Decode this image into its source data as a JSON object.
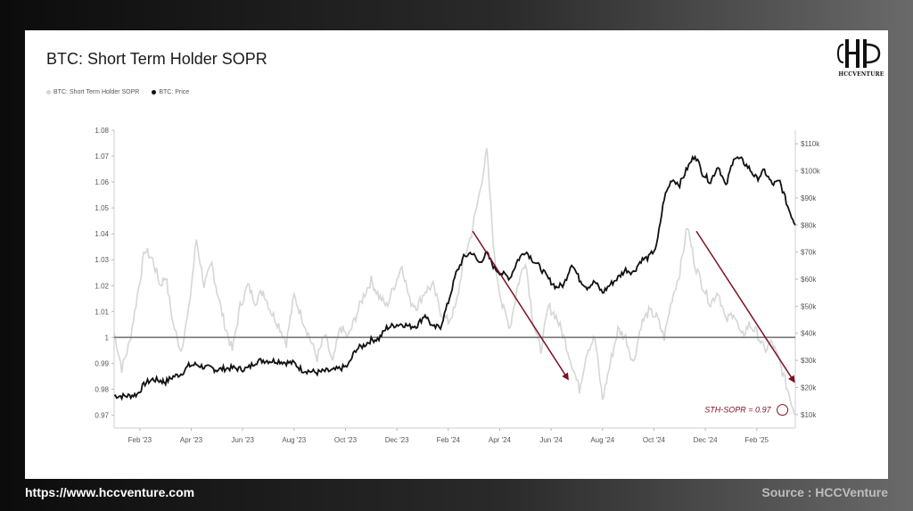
{
  "footer": {
    "url": "https://www.hccventure.com",
    "source": "Source : HCCVenture"
  },
  "logo": {
    "text": "HCCVENTURE"
  },
  "colors": {
    "sopr": "#d6d6d6",
    "price": "#111111",
    "baseline": "#777777",
    "annotation": "#7a1020"
  },
  "chart_data": {
    "type": "line",
    "title": "BTC: Short Term Holder SOPR",
    "legend": [
      "BTC: Short Term Holder SOPR",
      "BTC: Price"
    ],
    "legend_position": "top-left",
    "grid": false,
    "x_ticks": [
      "Feb '23",
      "Apr '23",
      "Jun '23",
      "Aug '23",
      "Oct '23",
      "Dec '23",
      "Feb '24",
      "Apr '24",
      "Jun '24",
      "Aug '24",
      "Oct '24",
      "Dec '24",
      "Feb '25"
    ],
    "y_left_ticks": [
      "1.08",
      "1.07",
      "1.06",
      "1.05",
      "1.04",
      "1.03",
      "1.02",
      "1.01",
      "1",
      "0.99",
      "0.98",
      "0.97"
    ],
    "y_right_ticks": [
      "$110k",
      "$100k",
      "$90k",
      "$80k",
      "$70k",
      "$60k",
      "$50k",
      "$40k",
      "$30k",
      "$20k",
      "$10k"
    ],
    "y_left_range": [
      0.965,
      1.08
    ],
    "y_right_range": [
      5000,
      115000
    ],
    "x_range": [
      0,
      26.5
    ],
    "baseline": 1,
    "annotation": "STH-SOPR = 0.97",
    "series": [
      {
        "name": "BTC: Short Term Holder SOPR",
        "axis": "left",
        "x": [
          0,
          0.3,
          0.6,
          0.9,
          1.2,
          1.5,
          1.8,
          2.0,
          2.3,
          2.6,
          2.9,
          3.2,
          3.5,
          3.8,
          4.0,
          4.3,
          4.6,
          4.9,
          5.2,
          5.5,
          5.8,
          6.1,
          6.4,
          6.7,
          7.0,
          7.3,
          7.6,
          7.9,
          8.2,
          8.5,
          8.8,
          9.1,
          9.4,
          9.7,
          10.0,
          10.3,
          10.6,
          10.9,
          11.2,
          11.5,
          11.8,
          12.1,
          12.4,
          12.7,
          13.0,
          13.3,
          13.6,
          13.9,
          14.2,
          14.5,
          14.8,
          15.1,
          15.4,
          15.7,
          16.0,
          16.3,
          16.6,
          16.9,
          17.2,
          17.5,
          17.8,
          18.1,
          18.4,
          18.7,
          19.0,
          19.3,
          19.6,
          19.9,
          20.2,
          20.5,
          20.8,
          21.1,
          21.4,
          21.7,
          22.0,
          22.3,
          22.6,
          22.9,
          23.2,
          23.5,
          23.8,
          24.1,
          24.4,
          24.7,
          25.0,
          25.3,
          25.6,
          25.9,
          26.2,
          26.5
        ],
        "values": [
          1.002,
          0.988,
          0.998,
          1.016,
          1.034,
          1.03,
          1.02,
          1.024,
          1.005,
          0.995,
          1.01,
          1.038,
          1.02,
          1.028,
          1.018,
          1.005,
          0.995,
          1.012,
          1.02,
          1.014,
          1.018,
          1.01,
          1.005,
          0.998,
          1.016,
          1.008,
          1.0,
          0.992,
          1.001,
          0.99,
          1.004,
          1.0,
          1.008,
          1.016,
          1.022,
          1.016,
          1.012,
          1.02,
          1.028,
          1.014,
          1.012,
          1.018,
          1.02,
          1.01,
          1.006,
          1.012,
          1.03,
          1.04,
          1.055,
          1.072,
          1.03,
          1.012,
          1.004,
          1.02,
          1.03,
          1.006,
          0.995,
          1.012,
          1.008,
          1.0,
          0.99,
          0.98,
          0.995,
          1.0,
          0.976,
          0.99,
          1.003,
          1.0,
          0.99,
          1.005,
          1.01,
          1.008,
          1.0,
          1.015,
          1.025,
          1.043,
          1.028,
          1.02,
          1.013,
          1.018,
          1.006,
          1.01,
          1.0,
          1.005,
          1.002,
          0.995,
          0.998,
          0.99,
          0.98,
          0.97
        ]
      },
      {
        "name": "BTC: Price",
        "axis": "right",
        "x": [
          0,
          0.3,
          0.6,
          0.9,
          1.2,
          1.5,
          1.8,
          2.0,
          2.3,
          2.6,
          2.9,
          3.2,
          3.5,
          3.8,
          4.0,
          4.3,
          4.6,
          4.9,
          5.2,
          5.5,
          5.8,
          6.1,
          6.4,
          6.7,
          7.0,
          7.3,
          7.6,
          7.9,
          8.2,
          8.5,
          8.8,
          9.1,
          9.4,
          9.7,
          10.0,
          10.3,
          10.6,
          10.9,
          11.2,
          11.5,
          11.8,
          12.1,
          12.4,
          12.7,
          13.0,
          13.3,
          13.6,
          13.9,
          14.2,
          14.5,
          14.8,
          15.1,
          15.4,
          15.7,
          16.0,
          16.3,
          16.6,
          16.9,
          17.2,
          17.5,
          17.8,
          18.1,
          18.4,
          18.7,
          19.0,
          19.3,
          19.6,
          19.9,
          20.2,
          20.5,
          20.8,
          21.1,
          21.4,
          21.7,
          22.0,
          22.3,
          22.6,
          22.9,
          23.2,
          23.5,
          23.8,
          24.1,
          24.4,
          24.7,
          25.0,
          25.3,
          25.6,
          25.9,
          26.2,
          26.5
        ],
        "values": [
          17000,
          16800,
          16900,
          17500,
          21500,
          23000,
          22500,
          22000,
          24000,
          25000,
          28000,
          28500,
          27500,
          27000,
          26500,
          27000,
          27200,
          26800,
          27000,
          29500,
          30000,
          29800,
          29800,
          29200,
          29000,
          26500,
          26000,
          25500,
          26000,
          26200,
          27000,
          28000,
          34000,
          35500,
          37500,
          38000,
          42000,
          43000,
          43500,
          42500,
          43000,
          47000,
          42000,
          42500,
          51500,
          62000,
          68000,
          70000,
          66000,
          69500,
          64000,
          62000,
          60500,
          67000,
          70500,
          67000,
          64000,
          60000,
          57000,
          58000,
          66000,
          60000,
          57000,
          59000,
          55000,
          58000,
          60500,
          63500,
          62500,
          67000,
          68000,
          72000,
          90000,
          97000,
          95000,
          101000,
          106000,
          99000,
          96000,
          102000,
          94000,
          105000,
          104000,
          101000,
          97000,
          100000,
          95000,
          96000,
          87000,
          80000
        ]
      }
    ],
    "trend_arrows": [
      {
        "from": [
          13.95,
          1.041
        ],
        "to": [
          17.65,
          0.984
        ]
      },
      {
        "from": [
          22.65,
          1.041
        ],
        "to": [
          26.45,
          0.983
        ]
      }
    ],
    "marker": {
      "x": 26.0,
      "y": 0.972
    }
  }
}
